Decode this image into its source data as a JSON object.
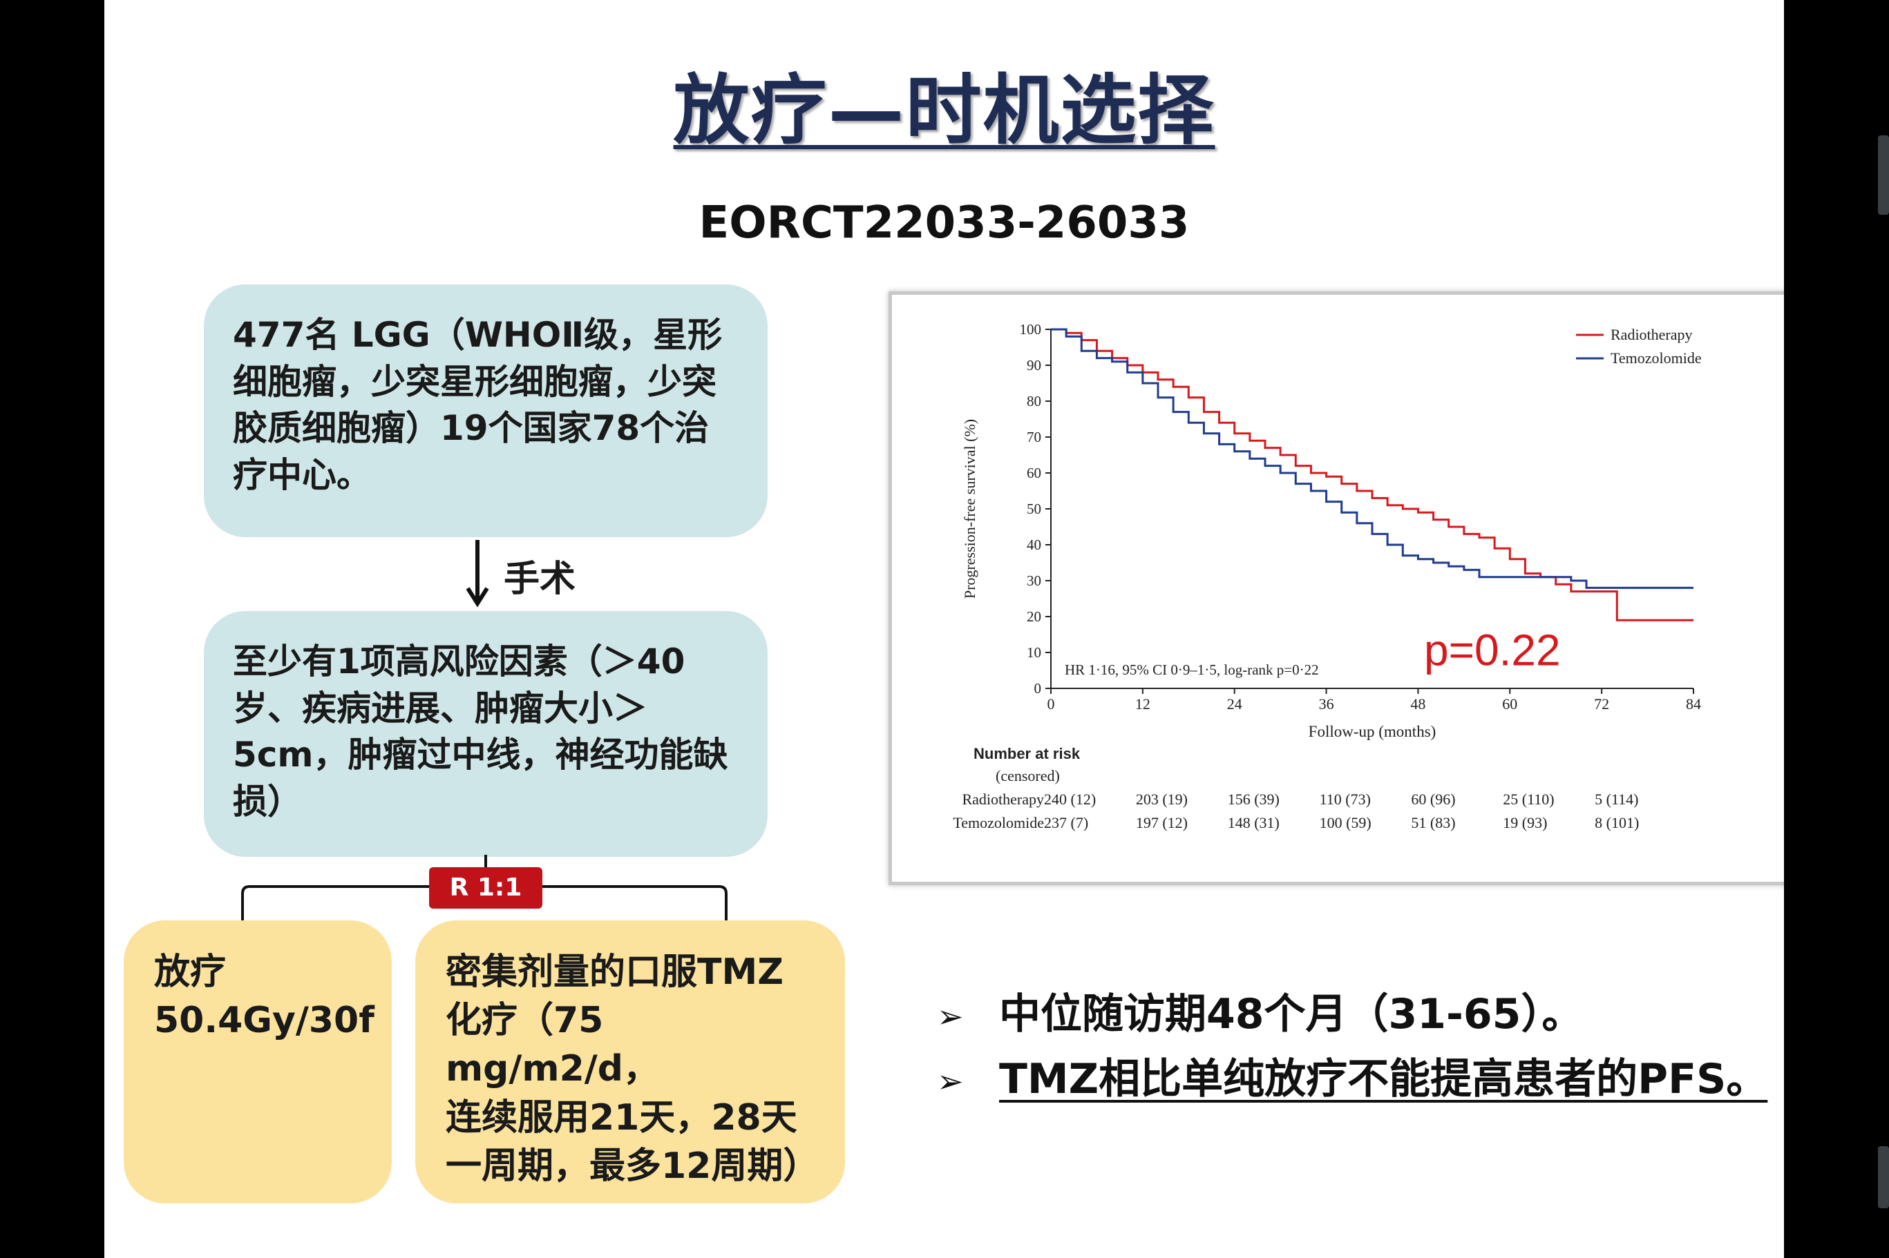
{
  "slide": {
    "title": "放疗—时机选择",
    "trial": "EORCT22033-26033"
  },
  "flow": {
    "population": "477名 LGG（WHOⅡ级，星形细胞瘤，少突星形细胞瘤，少突胶质细胞瘤）19个国家78个治疗中心。",
    "surgery_label": "手术",
    "risk_factors": "至少有1项高风险因素（＞40岁、疾病进展、肿瘤大小＞5cm，肿瘤过中线，神经功能缺损）",
    "randomization": "R 1:1",
    "arm_rt": [
      "放疗",
      "50.4Gy/30f"
    ],
    "arm_tmz": [
      "密集剂量的口服TMZ",
      "化疗（75 mg/m2/d，",
      "连续服用21天，28天",
      "一周期，最多12周期）"
    ]
  },
  "chart_data": {
    "type": "line",
    "step": true,
    "xlabel": "Follow-up (months)",
    "ylabel": "Progression-free survival (%)",
    "xlim": [
      0,
      84
    ],
    "ylim": [
      0,
      100
    ],
    "xticks": [
      0,
      12,
      24,
      36,
      48,
      60,
      72,
      84
    ],
    "yticks": [
      0,
      10,
      20,
      30,
      40,
      50,
      60,
      70,
      80,
      90,
      100
    ],
    "grid": false,
    "legend_position": "top-right",
    "annotation": "HR 1·16, 95% CI 0·9–1·5, log-rank p=0·22",
    "p_value_text": "p=0.22",
    "series": [
      {
        "name": "Radiotherapy",
        "color": "#d7191c",
        "x": [
          0,
          2,
          4,
          6,
          8,
          10,
          12,
          14,
          16,
          18,
          20,
          22,
          24,
          26,
          28,
          30,
          32,
          34,
          36,
          38,
          40,
          42,
          44,
          46,
          48,
          50,
          52,
          54,
          56,
          58,
          60,
          62,
          64,
          66,
          68,
          70,
          72,
          74,
          76,
          78,
          80,
          82
        ],
        "y": [
          100,
          99,
          97,
          94,
          92,
          90,
          88,
          86,
          84,
          81,
          77,
          74,
          71,
          69,
          67,
          65,
          62,
          60,
          59,
          57,
          55,
          53,
          51,
          50,
          49,
          47,
          45,
          43,
          42,
          39,
          36,
          32,
          31,
          29,
          27,
          27,
          27,
          19,
          19,
          19,
          19,
          19
        ]
      },
      {
        "name": "Temozolomide",
        "color": "#1f3c8f",
        "x": [
          0,
          2,
          4,
          6,
          8,
          10,
          12,
          14,
          16,
          18,
          20,
          22,
          24,
          26,
          28,
          30,
          32,
          34,
          36,
          38,
          40,
          42,
          44,
          46,
          48,
          50,
          52,
          54,
          56,
          58,
          60,
          62,
          64,
          66,
          68,
          70,
          72,
          74,
          76,
          78,
          80,
          82
        ],
        "y": [
          100,
          98,
          94,
          92,
          91,
          88,
          85,
          81,
          77,
          74,
          71,
          68,
          66,
          64,
          62,
          60,
          57,
          55,
          52,
          49,
          46,
          43,
          40,
          37,
          36,
          35,
          34,
          33,
          31,
          31,
          31,
          31,
          31,
          31,
          30,
          28,
          28,
          28,
          28,
          28,
          28,
          28
        ]
      }
    ],
    "risk_table": {
      "header": [
        "Number at risk",
        "(censored)"
      ],
      "rows": [
        {
          "label": "Radiotherapy",
          "values": [
            "240 (12)",
            "203 (19)",
            "156 (39)",
            "110 (73)",
            "60 (96)",
            "25 (110)",
            "5 (114)"
          ]
        },
        {
          "label": "Temozolomide",
          "values": [
            "237 (7)",
            "197 (12)",
            "148 (31)",
            "100 (59)",
            "51 (83)",
            "19 (93)",
            "8 (101)"
          ]
        }
      ]
    }
  },
  "bullets": [
    {
      "mark": "➢",
      "text": "中位随访期48个月（31-65）。"
    },
    {
      "mark": "➢",
      "text": "TMZ相比单纯放疗不能提高患者的PFS。"
    }
  ]
}
